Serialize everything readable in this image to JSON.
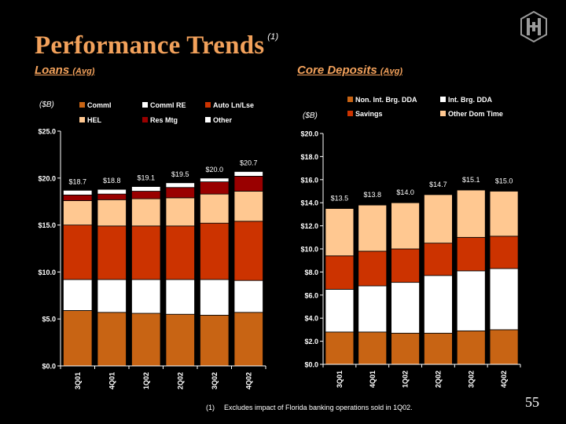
{
  "title": "Performance Trends",
  "title_note": "(1)",
  "colors": {
    "accent": "#f2a15b",
    "Comml": "#c86414",
    "Comml RE": "#ffffff",
    "Auto Ln/Lse": "#cc3300",
    "HEL": "#ffc891",
    "Res Mtg": "#990000",
    "Other": "#ffffff",
    "Non. Int. Brg. DDA": "#c86414",
    "Int. Brg. DDA": "#ffffff",
    "Savings": "#cc3300",
    "Other Dom Time": "#ffc891"
  },
  "logo_icon": "huntington-logo-icon",
  "footnote": {
    "number": "(1)",
    "text": "Excludes impact of Florida banking operations sold in 1Q02."
  },
  "page_number": "55",
  "chart_data": [
    {
      "type": "bar",
      "stacked": true,
      "title": "Loans",
      "title_note": "(Avg)",
      "unit_label": "($B)",
      "categories": [
        "3Q01",
        "4Q01",
        "1Q02",
        "2Q02",
        "3Q02",
        "4Q02"
      ],
      "ylim": [
        0,
        25
      ],
      "yticks": [
        "$0.0",
        "$5.0",
        "$10.0",
        "$15.0",
        "$20.0",
        "$25.0"
      ],
      "grid": false,
      "legend_position": "top",
      "series": [
        {
          "name": "Comml",
          "values": [
            5.9,
            5.7,
            5.6,
            5.5,
            5.4,
            5.7
          ]
        },
        {
          "name": "Comml RE",
          "values": [
            3.3,
            3.5,
            3.6,
            3.7,
            3.8,
            3.4
          ]
        },
        {
          "name": "Auto Ln/Lse",
          "values": [
            5.8,
            5.7,
            5.7,
            5.7,
            6.0,
            6.3
          ]
        },
        {
          "name": "HEL",
          "values": [
            2.6,
            2.8,
            2.9,
            3.0,
            3.1,
            3.2
          ]
        },
        {
          "name": "Res Mtg",
          "values": [
            0.6,
            0.6,
            0.8,
            1.1,
            1.3,
            1.6
          ]
        },
        {
          "name": "Other",
          "values": [
            0.5,
            0.5,
            0.5,
            0.5,
            0.4,
            0.5
          ]
        }
      ],
      "total_labels": [
        "$18.7",
        "$18.8",
        "$19.1",
        "$19.5",
        "$20.0",
        "$20.7"
      ],
      "totals": [
        18.7,
        18.8,
        19.1,
        19.5,
        20.0,
        20.7
      ]
    },
    {
      "type": "bar",
      "stacked": true,
      "title": "Core Deposits",
      "title_note": "(Avg)",
      "unit_label": "($B)",
      "categories": [
        "3Q01",
        "4Q01",
        "1Q02",
        "2Q02",
        "3Q02",
        "4Q02"
      ],
      "ylim": [
        0,
        20
      ],
      "yticks": [
        "$0.0",
        "$2.0",
        "$4.0",
        "$6.0",
        "$8.0",
        "$10.0",
        "$12.0",
        "$14.0",
        "$16.0",
        "$18.0",
        "$20.0"
      ],
      "grid": false,
      "legend_position": "top",
      "series": [
        {
          "name": "Non. Int. Brg. DDA",
          "values": [
            2.8,
            2.8,
            2.7,
            2.7,
            2.9,
            3.0
          ]
        },
        {
          "name": "Int. Brg. DDA",
          "values": [
            3.7,
            4.0,
            4.4,
            5.0,
            5.2,
            5.3
          ]
        },
        {
          "name": "Savings",
          "values": [
            2.9,
            3.0,
            2.9,
            2.8,
            2.9,
            2.8
          ]
        },
        {
          "name": "Other Dom Time",
          "values": [
            4.1,
            4.0,
            4.0,
            4.2,
            4.1,
            3.9
          ]
        }
      ],
      "total_labels": [
        "$13.5",
        "$13.8",
        "$14.0",
        "$14.7",
        "$15.1",
        "$15.0"
      ],
      "totals": [
        13.5,
        13.8,
        14.0,
        14.7,
        15.1,
        15.0
      ]
    }
  ]
}
